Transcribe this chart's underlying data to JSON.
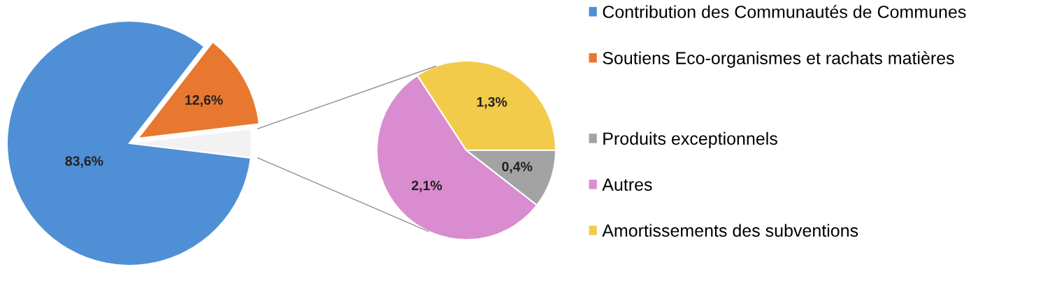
{
  "chart_data": [
    {
      "type": "pie",
      "categories": [
        "Contribution des Communautés de Communes",
        "Soutiens Eco-organismes et rachats matières",
        null
      ],
      "values": [
        83.6,
        12.6,
        3.8
      ],
      "colors": [
        "#4f8fd6",
        "#e8782f",
        "#f2f2f2"
      ],
      "value_labels": [
        "83,6%",
        "12,6%",
        null
      ],
      "legend": "right"
    },
    {
      "type": "pie",
      "categories": [
        "Produits exceptionnels",
        "Autres",
        "Amortissements des subventions"
      ],
      "values": [
        0.4,
        2.1,
        1.3
      ],
      "colors": [
        "#a3a3a3",
        "#d98ccf",
        "#f3cb4b"
      ],
      "value_labels": [
        "0,4%",
        "2,1%",
        "1,3%"
      ],
      "legend": "right"
    }
  ]
}
